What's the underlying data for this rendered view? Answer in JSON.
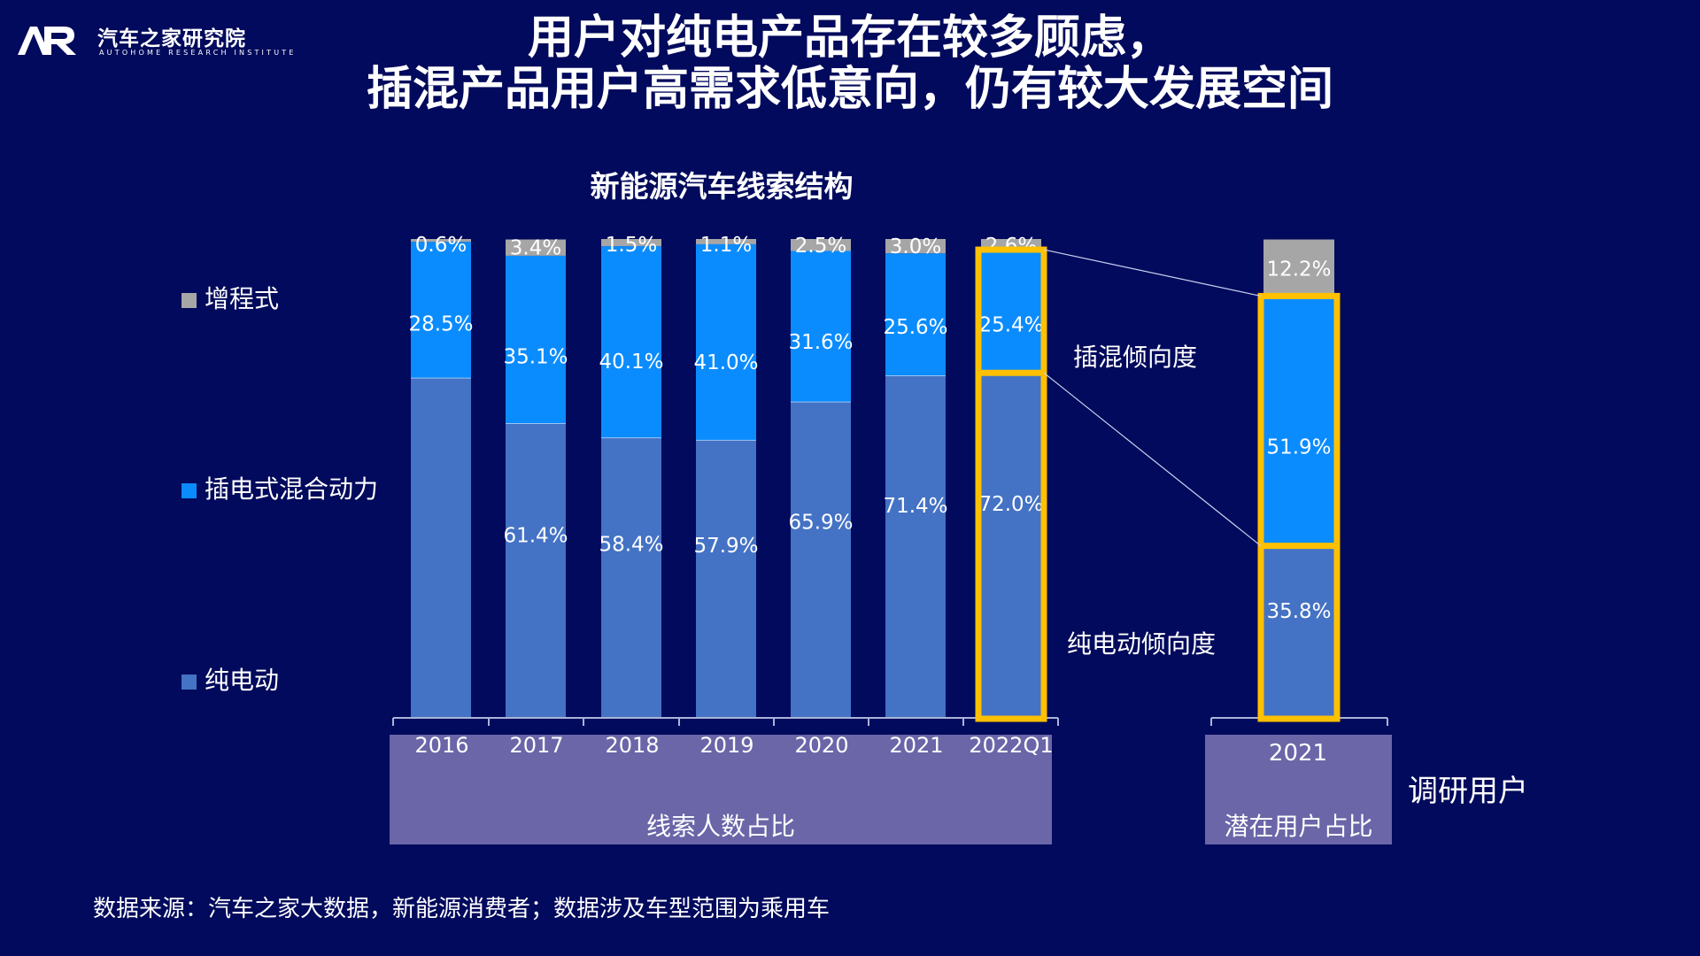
{
  "header": {
    "logo_mark": "AR",
    "logo_text": "汽车之家研究院",
    "logo_subtext": "AUTOHOME RESEARCH INSTITUTE",
    "headline_line1": "用户对纯电产品存在较多顾虑，",
    "headline_line2": "插混产品用户高需求低意向，仍有较大发展空间"
  },
  "legend": [
    {
      "label": "增程式",
      "color": "#a6a6a6"
    },
    {
      "label": "插电式混合动力",
      "color": "#0a8cff"
    },
    {
      "label": "纯电动",
      "color": "#4472c4"
    }
  ],
  "annotations": {
    "phev_tendency": "插混倾向度",
    "bev_tendency": "纯电动倾向度",
    "survey_users": "调研用户"
  },
  "groups": {
    "leads": "线索人数占比",
    "potential": "潜在用户占比"
  },
  "source": "数据来源：汽车之家大数据，新能源消费者；数据涉及车型范围为乘用车",
  "colors": {
    "background": "#010a5c",
    "bev": "#4472c4",
    "phev": "#0a8cff",
    "erev": "#a6a6a6",
    "highlight": "#ffc000",
    "axis_box": "#6a66a8"
  },
  "chart_data": {
    "type": "bar",
    "stacked": true,
    "title": "新能源汽车线索结构",
    "categories": [
      "2016",
      "2017",
      "2018",
      "2019",
      "2020",
      "2021",
      "2022Q1",
      "2021"
    ],
    "series": [
      {
        "name": "纯电动",
        "values": [
          70.9,
          61.4,
          58.4,
          57.9,
          65.9,
          71.4,
          72.0,
          35.8
        ],
        "labels": [
          "",
          "61.4%",
          "58.4%",
          "57.9%",
          "65.9%",
          "71.4%",
          "72.0%",
          "35.8%"
        ]
      },
      {
        "name": "插电式混合动力",
        "values": [
          28.5,
          35.1,
          40.1,
          41.0,
          31.6,
          25.6,
          25.4,
          51.9
        ],
        "labels": [
          "28.5%",
          "35.1%",
          "40.1%",
          "41.0%",
          "31.6%",
          "25.6%",
          "25.4%",
          "51.9%"
        ]
      },
      {
        "name": "增程式",
        "values": [
          0.6,
          3.4,
          1.5,
          1.1,
          2.5,
          3.0,
          2.6,
          12.2
        ],
        "labels": [
          "0.6%",
          "3.4%",
          "1.5%",
          "1.1%",
          "2.5%",
          "3.0%",
          "2.6%",
          "12.2%"
        ]
      }
    ],
    "ylim": [
      0,
      100
    ],
    "highlighted": [
      "2022Q1",
      "2021"
    ],
    "legend_position": "left"
  }
}
